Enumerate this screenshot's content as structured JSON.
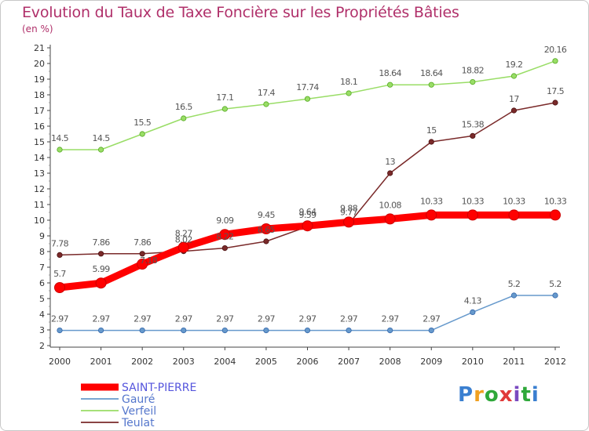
{
  "chart_data": {
    "type": "line",
    "title": "Evolution du Taux de Taxe Foncière sur les Propriétés Bâties",
    "unit_label": "(en %)",
    "xlabel": "",
    "ylabel": "",
    "ylim": [
      2,
      21
    ],
    "y_ticks": [
      "2",
      "3",
      "4",
      "5",
      "6",
      "7",
      "8",
      "9",
      "10",
      "11",
      "12",
      "13",
      "14",
      "15",
      "16",
      "17",
      "18",
      "19",
      "20",
      "21"
    ],
    "categories": [
      "2000",
      "2001",
      "2002",
      "2003",
      "2004",
      "2005",
      "2006",
      "2007",
      "2008",
      "2009",
      "2010",
      "2011",
      "2012"
    ],
    "series": [
      {
        "name": "SAINT-PIERRE",
        "color": "#ff0000",
        "values": [
          5.7,
          5.99,
          7.2,
          8.27,
          9.09,
          9.45,
          9.64,
          9.88,
          10.08,
          10.33,
          10.33,
          10.33,
          10.33
        ],
        "labels": [
          "5.7",
          "5.99",
          "",
          "8.27",
          "9.09",
          "9.45",
          "9.64",
          "9.88",
          "10.08",
          "10.33",
          "10.33",
          "10.33",
          "10.33"
        ]
      },
      {
        "name": "Gauré",
        "color": "#6699cc",
        "values": [
          2.97,
          2.97,
          2.97,
          2.97,
          2.97,
          2.97,
          2.97,
          2.97,
          2.97,
          2.97,
          4.13,
          5.2,
          5.2
        ],
        "labels": [
          "2.97",
          "2.97",
          "2.97",
          "2.97",
          "2.97",
          "2.97",
          "2.97",
          "2.97",
          "2.97",
          "2.97",
          "4.13",
          "5.2",
          "5.2"
        ]
      },
      {
        "name": "Verfeil",
        "color": "#99dd66",
        "values": [
          14.5,
          14.5,
          15.5,
          16.5,
          17.1,
          17.4,
          17.74,
          18.1,
          18.64,
          18.64,
          18.82,
          19.2,
          20.16
        ],
        "labels": [
          "14.5",
          "14.5",
          "15.5",
          "16.5",
          "17.1",
          "17.4",
          "17.74",
          "18.1",
          "18.64",
          "18.64",
          "18.82",
          "19.2",
          "20.16"
        ]
      },
      {
        "name": "Teulat",
        "color": "#7a2a2a",
        "values": [
          7.78,
          7.86,
          7.86,
          8.02,
          8.22,
          8.65,
          9.59,
          9.77,
          13,
          15,
          15.38,
          17,
          17.5
        ],
        "labels": [
          "7.78",
          "7.86",
          "7.86",
          "8.02",
          "8.22",
          "8.65",
          "9.59",
          "9.77",
          "13",
          "15",
          "15.38",
          "17",
          "17.5"
        ]
      }
    ],
    "overlap_labels": [
      "7.18"
    ],
    "legend": [
      "SAINT-PIERRE",
      "Gauré",
      "Verfeil",
      "Teulat"
    ],
    "legend_position": "bottom-left",
    "grid": false
  },
  "branding": {
    "logo_text": "Proxiti",
    "logo_colors": [
      "#3a7fd0",
      "#f0a020",
      "#2fa83a",
      "#e03a3a",
      "#7a4ac0",
      "#2fa83a",
      "#3a7fd0"
    ]
  }
}
